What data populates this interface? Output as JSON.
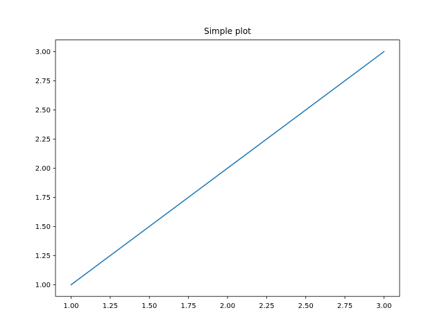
{
  "chart_data": {
    "type": "line",
    "title": "Simple plot",
    "xlabel": "",
    "ylabel": "",
    "xlim": [
      0.9,
      3.1
    ],
    "ylim": [
      0.9,
      3.1
    ],
    "grid": false,
    "x_ticks": [
      "1.00",
      "1.25",
      "1.50",
      "1.75",
      "2.00",
      "2.25",
      "2.50",
      "2.75",
      "3.00"
    ],
    "y_ticks": [
      "1.00",
      "1.25",
      "1.50",
      "1.75",
      "2.00",
      "2.25",
      "2.50",
      "2.75",
      "3.00"
    ],
    "series": [
      {
        "x": [
          1,
          2,
          3
        ],
        "y": [
          1,
          2,
          3
        ],
        "color": "#1f77b4"
      }
    ]
  }
}
